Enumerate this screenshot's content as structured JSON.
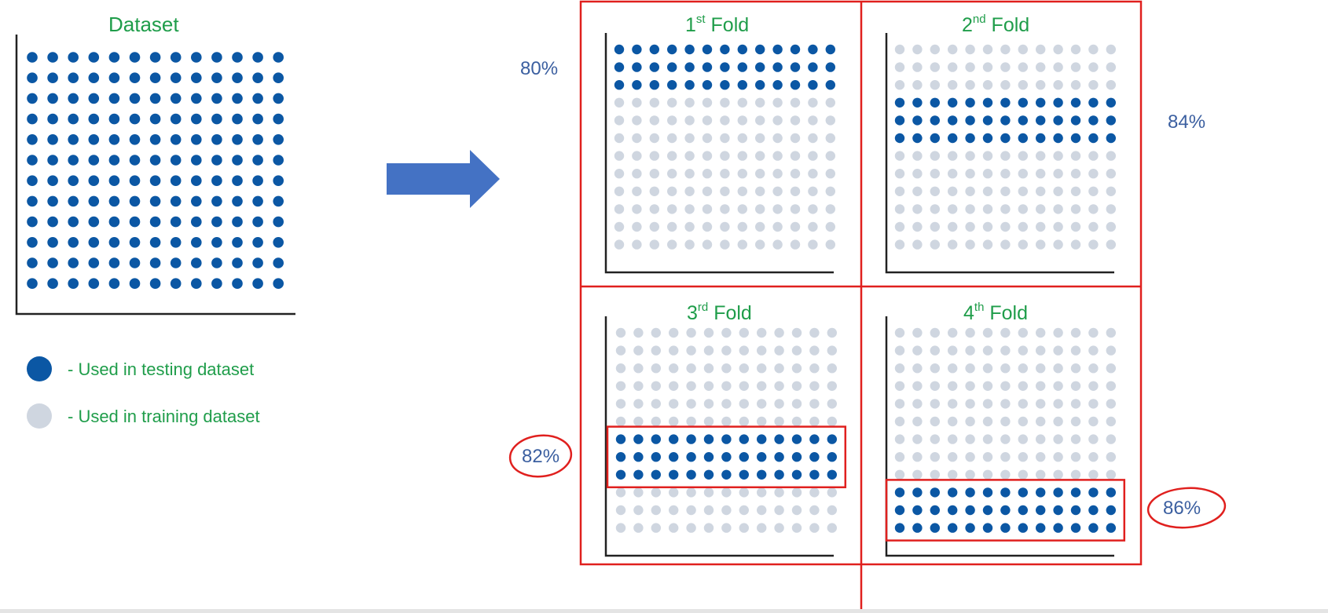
{
  "dataset_title": "Dataset",
  "legend": {
    "testing": "- Used in testing dataset",
    "training": "- Used in training dataset"
  },
  "folds": [
    {
      "num": "1",
      "sup": "st",
      "word": "Fold",
      "accuracy": "80%",
      "test_rows": [
        0,
        1,
        2
      ],
      "highlighted": false,
      "accuracy_circled": false
    },
    {
      "num": "2",
      "sup": "nd",
      "word": "Fold",
      "accuracy": "84%",
      "test_rows": [
        3,
        4,
        5
      ],
      "highlighted": false,
      "accuracy_circled": false
    },
    {
      "num": "3",
      "sup": "rd",
      "word": "Fold",
      "accuracy": "82%",
      "test_rows": [
        6,
        7,
        8
      ],
      "highlighted": true,
      "accuracy_circled": true
    },
    {
      "num": "4",
      "sup": "th",
      "word": "Fold",
      "accuracy": "86%",
      "test_rows": [
        9,
        10,
        11
      ],
      "highlighted": true,
      "accuracy_circled": true
    }
  ],
  "grid": {
    "rows": 12,
    "cols": 13
  },
  "colors": {
    "testing_dot": "#0b57a4",
    "training_dot": "#cfd6e0",
    "title_green": "#1f9d4a",
    "percent_blue": "#3b5fa0",
    "annotation_red": "#e0201e",
    "arrow_blue": "#4472c4"
  }
}
